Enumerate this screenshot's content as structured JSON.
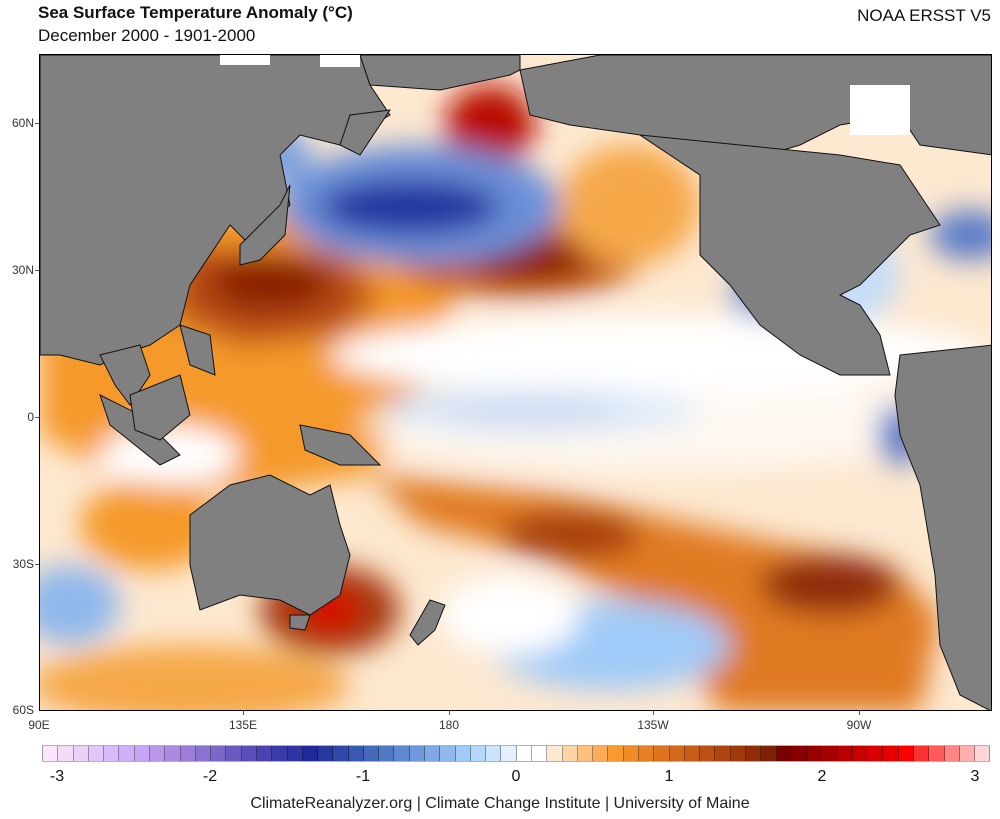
{
  "header": {
    "title": "Sea Surface Temperature Anomaly (°C)",
    "subtitle": "December 2000 - 1901-2000",
    "dataset": "NOAA ERSST V5"
  },
  "map": {
    "land_color": "#808080",
    "lat_labels": [
      "60N",
      "30N",
      "0",
      "30S",
      "60S"
    ],
    "lon_labels": [
      "90E",
      "135E",
      "180",
      "135W",
      "90W"
    ],
    "lat_range": [
      -60,
      75
    ],
    "lon_range": [
      90,
      290
    ]
  },
  "colorbar": {
    "labels": [
      "-3",
      "-2",
      "-1",
      "0",
      "1",
      "2",
      "3"
    ],
    "range": [
      -3.1,
      3.1
    ],
    "step": 0.1,
    "colors": [
      "#fbe6fb",
      "#f4dbf8",
      "#ecd0f8",
      "#e3c6f8",
      "#dabaf8",
      "#d0aef8",
      "#c8a4f6",
      "#ba96ea",
      "#ab8ae0",
      "#9b7ed8",
      "#8a72d0",
      "#7a67c8",
      "#6a5ac0",
      "#5a4eb8",
      "#4a44b0",
      "#3a3aa8",
      "#2e34a0",
      "#1f2a98",
      "#2838a0",
      "#3148aa",
      "#3a58b2",
      "#4468ba",
      "#5278c4",
      "#6088d0",
      "#7098da",
      "#80a8e4",
      "#90b8ec",
      "#a0cbf8",
      "#b4d8fa",
      "#cce4fb",
      "#e4f0fd",
      "#ffffff",
      "#ffffff",
      "#fde8d0",
      "#fdd4a8",
      "#fcc080",
      "#fbac58",
      "#f99a30",
      "#f08c28",
      "#e68024",
      "#dc7420",
      "#d2681c",
      "#c65c18",
      "#ba5014",
      "#ae4410",
      "#a0380c",
      "#902c08",
      "#802004",
      "#780000",
      "#880000",
      "#980000",
      "#a80000",
      "#b80000",
      "#c80000",
      "#d80000",
      "#e80000",
      "#ff0000",
      "#ff3030",
      "#ff5a5a",
      "#ff8484",
      "#ffaeae",
      "#ffd4d4"
    ]
  },
  "footer": {
    "credit": "ClimateReanalyzer.org | Climate Change Institute | University of Maine"
  }
}
